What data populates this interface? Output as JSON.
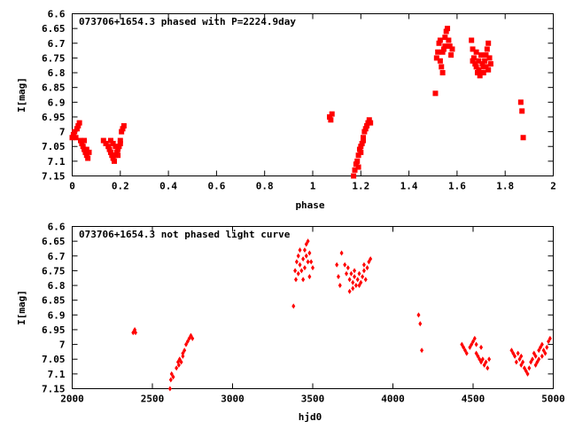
{
  "chart_data": [
    {
      "type": "scatter",
      "title": "073706+1654.3 phased with P=2224.9day",
      "xlabel": "phase",
      "ylabel": "I[mag]",
      "xlim": [
        0,
        2
      ],
      "ylim": [
        7.15,
        6.6
      ],
      "y_inverted": true,
      "xticks": [
        0,
        0.2,
        0.4,
        0.6,
        0.8,
        1,
        1.2,
        1.4,
        1.6,
        1.8,
        2
      ],
      "yticks": [
        6.6,
        6.65,
        6.7,
        6.75,
        6.8,
        6.85,
        6.9,
        6.95,
        7,
        7.05,
        7.1,
        7.15
      ],
      "grid": false,
      "marker_color": "#ff0000",
      "points": [
        [
          0.0,
          7.02
        ],
        [
          0.005,
          7.01
        ],
        [
          0.01,
          7.0
        ],
        [
          0.015,
          7.02
        ],
        [
          0.02,
          6.99
        ],
        [
          0.025,
          6.98
        ],
        [
          0.03,
          6.97
        ],
        [
          0.035,
          7.03
        ],
        [
          0.04,
          7.04
        ],
        [
          0.045,
          7.05
        ],
        [
          0.05,
          7.06
        ],
        [
          0.055,
          7.07
        ],
        [
          0.06,
          7.08
        ],
        [
          0.065,
          7.09
        ],
        [
          0.07,
          7.07
        ],
        [
          0.05,
          7.03
        ],
        [
          0.06,
          7.06
        ],
        [
          0.13,
          7.03
        ],
        [
          0.14,
          7.04
        ],
        [
          0.15,
          7.05
        ],
        [
          0.155,
          7.06
        ],
        [
          0.16,
          7.07
        ],
        [
          0.165,
          7.08
        ],
        [
          0.17,
          7.09
        ],
        [
          0.175,
          7.1
        ],
        [
          0.18,
          7.08
        ],
        [
          0.185,
          7.07
        ],
        [
          0.19,
          7.06
        ],
        [
          0.195,
          7.05
        ],
        [
          0.2,
          7.03
        ],
        [
          0.205,
          7.0
        ],
        [
          0.21,
          6.99
        ],
        [
          0.215,
          6.98
        ],
        [
          0.2,
          7.04
        ],
        [
          0.19,
          7.08
        ],
        [
          0.18,
          7.05
        ],
        [
          0.17,
          7.04
        ],
        [
          0.16,
          7.03
        ],
        [
          1.07,
          6.95
        ],
        [
          1.075,
          6.96
        ],
        [
          1.08,
          6.94
        ],
        [
          1.17,
          7.15
        ],
        [
          1.175,
          7.13
        ],
        [
          1.18,
          7.11
        ],
        [
          1.185,
          7.1
        ],
        [
          1.19,
          7.08
        ],
        [
          1.195,
          7.06
        ],
        [
          1.2,
          7.05
        ],
        [
          1.205,
          7.04
        ],
        [
          1.21,
          7.02
        ],
        [
          1.215,
          7.0
        ],
        [
          1.22,
          6.99
        ],
        [
          1.225,
          6.98
        ],
        [
          1.23,
          6.97
        ],
        [
          1.235,
          6.96
        ],
        [
          1.24,
          6.97
        ],
        [
          1.2,
          7.07
        ],
        [
          1.19,
          7.12
        ],
        [
          1.21,
          7.03
        ],
        [
          1.51,
          6.87
        ],
        [
          1.515,
          6.75
        ],
        [
          1.52,
          6.73
        ],
        [
          1.525,
          6.7
        ],
        [
          1.53,
          6.76
        ],
        [
          1.535,
          6.78
        ],
        [
          1.54,
          6.8
        ],
        [
          1.545,
          6.72
        ],
        [
          1.55,
          6.68
        ],
        [
          1.555,
          6.66
        ],
        [
          1.56,
          6.65
        ],
        [
          1.565,
          6.69
        ],
        [
          1.57,
          6.71
        ],
        [
          1.575,
          6.74
        ],
        [
          1.58,
          6.72
        ],
        [
          1.53,
          6.69
        ],
        [
          1.54,
          6.73
        ],
        [
          1.55,
          6.71
        ],
        [
          1.66,
          6.69
        ],
        [
          1.665,
          6.72
        ],
        [
          1.67,
          6.75
        ],
        [
          1.675,
          6.77
        ],
        [
          1.68,
          6.78
        ],
        [
          1.685,
          6.8
        ],
        [
          1.69,
          6.79
        ],
        [
          1.695,
          6.81
        ],
        [
          1.7,
          6.8
        ],
        [
          1.705,
          6.77
        ],
        [
          1.71,
          6.78
        ],
        [
          1.715,
          6.76
        ],
        [
          1.72,
          6.74
        ],
        [
          1.725,
          6.72
        ],
        [
          1.73,
          6.7
        ],
        [
          1.735,
          6.75
        ],
        [
          1.74,
          6.77
        ],
        [
          1.68,
          6.73
        ],
        [
          1.69,
          6.76
        ],
        [
          1.7,
          6.74
        ],
        [
          1.71,
          6.8
        ],
        [
          1.72,
          6.78
        ],
        [
          1.73,
          6.79
        ],
        [
          1.665,
          6.76
        ],
        [
          1.865,
          6.9
        ],
        [
          1.87,
          6.93
        ],
        [
          1.875,
          7.02
        ]
      ]
    },
    {
      "type": "scatter",
      "title": "073706+1654.3 not phased light curve",
      "xlabel": "hjd0",
      "ylabel": "I[mag]",
      "xlim": [
        2000,
        5000
      ],
      "ylim": [
        7.15,
        6.6
      ],
      "y_inverted": true,
      "xticks": [
        2000,
        2500,
        3000,
        3500,
        4000,
        4500,
        5000
      ],
      "yticks": [
        6.6,
        6.65,
        6.7,
        6.75,
        6.8,
        6.85,
        6.9,
        6.95,
        7,
        7.05,
        7.1,
        7.15
      ],
      "grid": false,
      "marker_color": "#ff0000",
      "points": [
        [
          2380,
          6.96
        ],
        [
          2390,
          6.95
        ],
        [
          2395,
          6.96
        ],
        [
          2610,
          7.15
        ],
        [
          2615,
          7.12
        ],
        [
          2620,
          7.1
        ],
        [
          2630,
          7.11
        ],
        [
          2650,
          7.08
        ],
        [
          2660,
          7.06
        ],
        [
          2670,
          7.05
        ],
        [
          2680,
          7.06
        ],
        [
          2690,
          7.04
        ],
        [
          2700,
          7.02
        ],
        [
          2710,
          7.0
        ],
        [
          2720,
          6.99
        ],
        [
          2730,
          6.98
        ],
        [
          2740,
          6.97
        ],
        [
          2750,
          6.98
        ],
        [
          2665,
          7.07
        ],
        [
          2690,
          7.03
        ],
        [
          3380,
          6.87
        ],
        [
          3390,
          6.75
        ],
        [
          3400,
          6.72
        ],
        [
          3410,
          6.7
        ],
        [
          3420,
          6.73
        ],
        [
          3430,
          6.75
        ],
        [
          3440,
          6.71
        ],
        [
          3450,
          6.68
        ],
        [
          3460,
          6.66
        ],
        [
          3470,
          6.65
        ],
        [
          3480,
          6.69
        ],
        [
          3490,
          6.72
        ],
        [
          3500,
          6.74
        ],
        [
          3410,
          6.76
        ],
        [
          3440,
          6.78
        ],
        [
          3460,
          6.7
        ],
        [
          3420,
          6.68
        ],
        [
          3470,
          6.72
        ],
        [
          3480,
          6.77
        ],
        [
          3450,
          6.74
        ],
        [
          3395,
          6.78
        ],
        [
          3650,
          6.73
        ],
        [
          3660,
          6.77
        ],
        [
          3670,
          6.8
        ],
        [
          3680,
          6.69
        ],
        [
          3720,
          6.74
        ],
        [
          3730,
          6.78
        ],
        [
          3740,
          6.76
        ],
        [
          3750,
          6.79
        ],
        [
          3760,
          6.77
        ],
        [
          3770,
          6.8
        ],
        [
          3780,
          6.78
        ],
        [
          3790,
          6.76
        ],
        [
          3800,
          6.79
        ],
        [
          3810,
          6.77
        ],
        [
          3820,
          6.75
        ],
        [
          3830,
          6.78
        ],
        [
          3840,
          6.74
        ],
        [
          3850,
          6.72
        ],
        [
          3860,
          6.71
        ],
        [
          3700,
          6.73
        ],
        [
          3710,
          6.76
        ],
        [
          3730,
          6.82
        ],
        [
          3750,
          6.81
        ],
        [
          3760,
          6.75
        ],
        [
          3790,
          6.8
        ],
        [
          3820,
          6.73
        ],
        [
          4160,
          6.9
        ],
        [
          4170,
          6.93
        ],
        [
          4180,
          7.02
        ],
        [
          4430,
          7.0
        ],
        [
          4440,
          7.01
        ],
        [
          4450,
          7.02
        ],
        [
          4460,
          7.03
        ],
        [
          4480,
          7.01
        ],
        [
          4490,
          7.0
        ],
        [
          4500,
          6.99
        ],
        [
          4510,
          6.98
        ],
        [
          4520,
          7.0
        ],
        [
          4530,
          7.04
        ],
        [
          4540,
          7.05
        ],
        [
          4550,
          7.06
        ],
        [
          4560,
          7.05
        ],
        [
          4570,
          7.07
        ],
        [
          4580,
          7.06
        ],
        [
          4590,
          7.08
        ],
        [
          4600,
          7.05
        ],
        [
          4520,
          7.03
        ],
        [
          4550,
          7.01
        ],
        [
          4740,
          7.02
        ],
        [
          4750,
          7.03
        ],
        [
          4760,
          7.04
        ],
        [
          4770,
          7.06
        ],
        [
          4780,
          7.03
        ],
        [
          4790,
          7.05
        ],
        [
          4800,
          7.04
        ],
        [
          4810,
          7.06
        ],
        [
          4820,
          7.08
        ],
        [
          4830,
          7.09
        ],
        [
          4840,
          7.1
        ],
        [
          4850,
          7.08
        ],
        [
          4860,
          7.06
        ],
        [
          4870,
          7.05
        ],
        [
          4880,
          7.03
        ],
        [
          4890,
          7.04
        ],
        [
          4900,
          7.06
        ],
        [
          4910,
          7.02
        ],
        [
          4920,
          7.01
        ],
        [
          4930,
          7.0
        ],
        [
          4940,
          7.02
        ],
        [
          4950,
          7.03
        ],
        [
          4960,
          7.01
        ],
        [
          4970,
          6.99
        ],
        [
          4980,
          6.98
        ],
        [
          4890,
          7.07
        ],
        [
          4910,
          7.05
        ],
        [
          4930,
          7.04
        ],
        [
          4800,
          7.07
        ]
      ]
    }
  ]
}
